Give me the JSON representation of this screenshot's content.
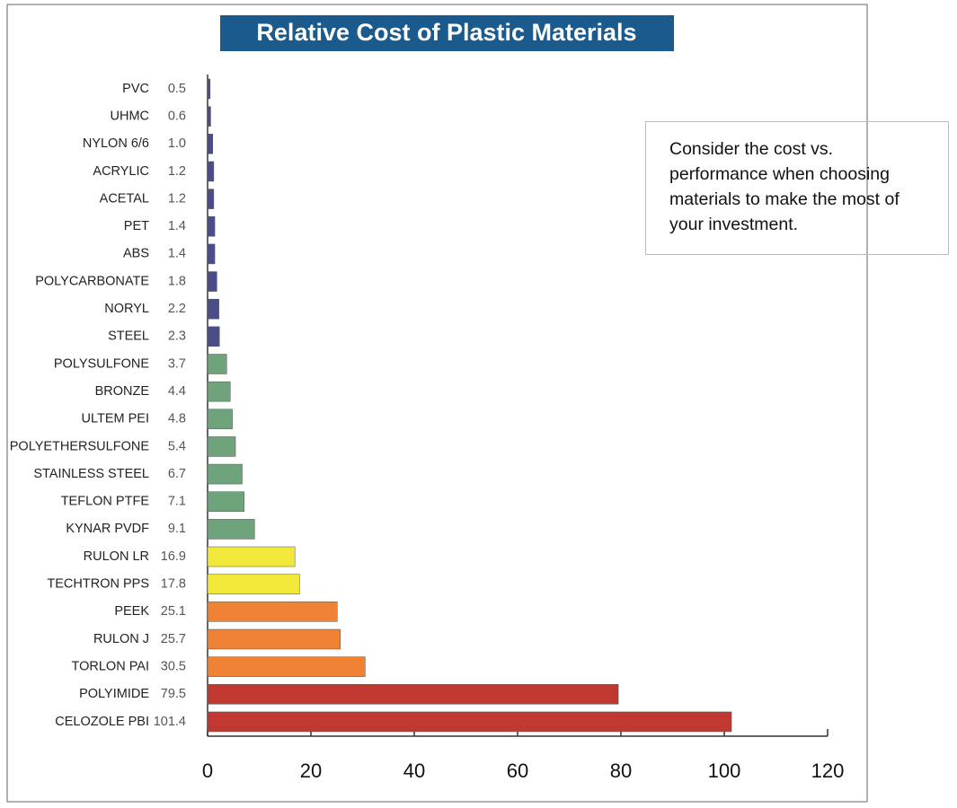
{
  "chart_data": {
    "type": "bar",
    "orientation": "horizontal",
    "title": "Relative Cost of Plastic Materials",
    "note": "Consider the cost vs. performance when choosing materials to make the most of your investment.",
    "categories": [
      "PVC",
      "UHMC",
      "NYLON 6/6",
      "ACRYLIC",
      "ACETAL",
      "PET",
      "ABS",
      "POLYCARBONATE",
      "NORYL",
      "STEEL",
      "POLYSULFONE",
      "BRONZE",
      "ULTEM PEI",
      "POLYETHERSULFONE",
      "STAINLESS STEEL",
      "TEFLON PTFE",
      "KYNAR PVDF",
      "RULON LR",
      "TECHTRON PPS",
      "PEEK",
      "RULON J",
      "TORLON PAI",
      "POLYIMIDE",
      "CELOZOLE PBI"
    ],
    "values": [
      0.5,
      0.6,
      1.0,
      1.2,
      1.2,
      1.4,
      1.4,
      1.8,
      2.2,
      2.3,
      3.7,
      4.4,
      4.8,
      5.4,
      6.7,
      7.1,
      9.1,
      16.9,
      17.8,
      25.1,
      25.7,
      30.5,
      79.5,
      101.4
    ],
    "value_labels": [
      "0.5",
      "0.6",
      "1.0",
      "1.2",
      "1.2",
      "1.4",
      "1.4",
      "1.8",
      "2.2",
      "2.3",
      "3.7",
      "4.4",
      "4.8",
      "5.4",
      "6.7",
      "7.1",
      "9.1",
      "16.9",
      "17.8",
      "25.1",
      "25.7",
      "30.5",
      "79.5",
      "101.4"
    ],
    "colors": [
      "#4b4d8a",
      "#4b4d8a",
      "#4b4d8a",
      "#4b4d8a",
      "#4b4d8a",
      "#4b4d8a",
      "#4b4d8a",
      "#4b4d8a",
      "#4b4d8a",
      "#4b4d8a",
      "#6fa37c",
      "#6fa37c",
      "#6fa37c",
      "#6fa37c",
      "#6fa37c",
      "#6fa37c",
      "#6fa37c",
      "#f1e83a",
      "#f1e83a",
      "#ef8233",
      "#ef8233",
      "#ef8233",
      "#c0382f",
      "#c0382f"
    ],
    "xlim": [
      0,
      120
    ],
    "xticks": [
      0,
      20,
      40,
      60,
      80,
      100,
      120
    ]
  }
}
